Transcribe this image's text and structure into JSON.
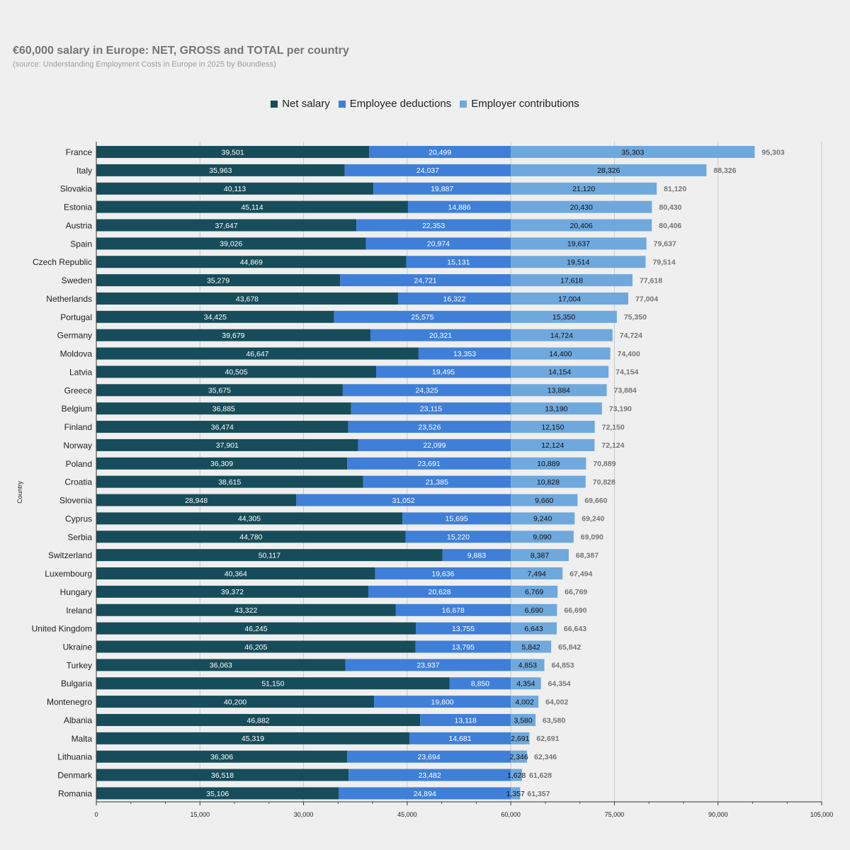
{
  "title": "€60,000 salary in Europe: NET, GROSS and TOTAL per country",
  "subtitle": "(source: Understanding Employment Costs in Europe in 2025 by Boundless)",
  "colors": {
    "net": "#174d5a",
    "deductions": "#3f7fd8",
    "contributions": "#6fa8dc"
  },
  "chart_data": {
    "type": "bar",
    "orientation": "horizontal",
    "stacked": true,
    "ylabel": "Country",
    "xlim": [
      0,
      105000
    ],
    "x_ticks": [
      "0",
      "15,000",
      "30,000",
      "45,000",
      "60,000",
      "75,000",
      "90,000",
      "105,000"
    ],
    "legend_position": "top",
    "grid": true,
    "categories": [
      "France",
      "Italy",
      "Slovakia",
      "Estonia",
      "Austria",
      "Spain",
      "Czech Republic",
      "Sweden",
      "Netherlands",
      "Portugal",
      "Germany",
      "Moldova",
      "Latvia",
      "Greece",
      "Belgium",
      "Finland",
      "Norway",
      "Poland",
      "Croatia",
      "Slovenia",
      "Cyprus",
      "Serbia",
      "Switzerland",
      "Luxembourg",
      "Hungary",
      "Ireland",
      "United Kingdom",
      "Ukraine",
      "Turkey",
      "Bulgaria",
      "Montenegro",
      "Albania",
      "Malta",
      "Lithuania",
      "Denmark",
      "Romania"
    ],
    "series": [
      {
        "name": "Net salary",
        "values": [
          39501,
          35963,
          40113,
          45114,
          37647,
          39026,
          44869,
          35279,
          43678,
          34425,
          39679,
          46647,
          40505,
          35675,
          36885,
          36474,
          37901,
          36309,
          38615,
          28948,
          44305,
          44780,
          50117,
          40364,
          39372,
          43322,
          46245,
          46205,
          36063,
          51150,
          40200,
          46882,
          45319,
          36306,
          36518,
          35106
        ]
      },
      {
        "name": "Employee deductions",
        "values": [
          20499,
          24037,
          19887,
          14886,
          22353,
          20974,
          15131,
          24721,
          16322,
          25575,
          20321,
          13353,
          19495,
          24325,
          23115,
          23526,
          22099,
          23691,
          21385,
          31052,
          15695,
          15220,
          9883,
          19636,
          20628,
          16678,
          13755,
          13795,
          23937,
          8850,
          19800,
          13118,
          14681,
          23694,
          23482,
          24894
        ]
      },
      {
        "name": "Employer contributions",
        "values": [
          35303,
          28326,
          21120,
          20430,
          20406,
          19637,
          19514,
          17618,
          17004,
          15350,
          14724,
          14400,
          14154,
          13884,
          13190,
          12150,
          12124,
          10889,
          10828,
          9660,
          9240,
          9090,
          8387,
          7494,
          6769,
          6690,
          6643,
          5842,
          4853,
          4354,
          4002,
          3580,
          2691,
          2346,
          1628,
          1357
        ]
      }
    ],
    "totals": [
      95303,
      88326,
      81120,
      80430,
      80406,
      79637,
      79514,
      77618,
      77004,
      75350,
      74724,
      74400,
      74154,
      73884,
      73190,
      72150,
      72124,
      70889,
      70828,
      69660,
      69240,
      69090,
      68387,
      67494,
      66769,
      66690,
      66643,
      65842,
      64853,
      64354,
      64002,
      63580,
      62691,
      62346,
      61628,
      61357
    ]
  }
}
